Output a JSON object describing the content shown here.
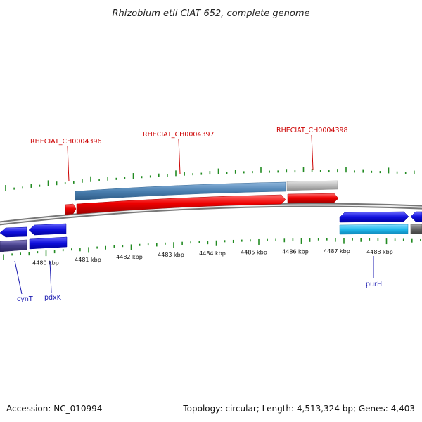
{
  "title": "Rhizobium etli CIAT 652, complete genome",
  "footer": {
    "accession": "Accession: NC_010994",
    "summary": "Topology: circular; Length: 4,513,324 bp; Genes: 4,403"
  },
  "scale_labels": [
    "4480 kbp",
    "4481 kbp",
    "4482 kbp",
    "4483 kbp",
    "4484 kbp",
    "4485 kbp",
    "4486 kbp",
    "4487 kbp",
    "4488 kbp"
  ],
  "top_labels": [
    "RHECIAT_CH0004396",
    "RHECIAT_CH0004397",
    "RHECIAT_CH0004398"
  ],
  "bottom_labels": [
    "cynT",
    "pdxK",
    "purH"
  ],
  "colors": {
    "feature_red": "#ee0000",
    "feature_steelblue": "#4a7fb0",
    "feature_grey": "#bbbbbb",
    "feature_blue": "#1010dd",
    "feature_cyan": "#22bbee",
    "feature_navy": "#443d88",
    "tick_green": "#228b22",
    "label_red": "#cc0000",
    "label_blue": "#1a1ab0"
  }
}
